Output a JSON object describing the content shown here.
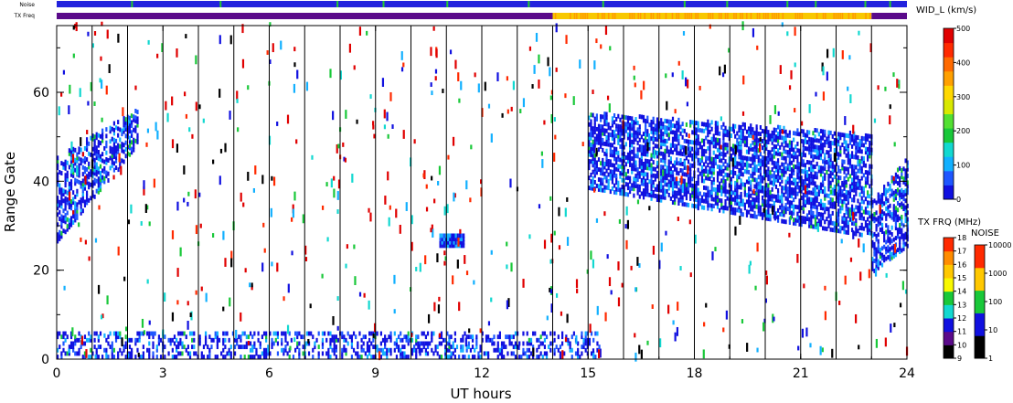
{
  "chart_data": {
    "type": "heatmap",
    "title": "",
    "xlabel": "UT hours",
    "ylabel": "Range Gate",
    "xlim": [
      0,
      24
    ],
    "ylim": [
      0,
      75
    ],
    "xticks": [
      0,
      3,
      6,
      9,
      12,
      15,
      18,
      21,
      24
    ],
    "yticks": [
      0,
      20,
      40,
      60
    ],
    "beam_scan_markers_hours": [
      1,
      2,
      3,
      4,
      5,
      6,
      7,
      8,
      9,
      10,
      11,
      12,
      13,
      14,
      15,
      16,
      17,
      18,
      19,
      20,
      21,
      22,
      23
    ],
    "strips": [
      {
        "label": "Noise",
        "segments": [
          {
            "start": 0,
            "end": 24,
            "color": "#2222dd"
          }
        ],
        "accents": [
          2.1,
          4.6,
          7.9,
          9.2,
          11.0,
          13.3,
          15.4,
          17.7,
          18.9,
          20.6,
          21.4,
          22.8,
          23.5
        ],
        "accent_color": "#22c830"
      },
      {
        "label": "TX Freq",
        "segments": [
          {
            "start": 0,
            "end": 14,
            "color": "#5a0a8a"
          },
          {
            "start": 14,
            "end": 23,
            "color": "#f8c800"
          },
          {
            "start": 23,
            "end": 24,
            "color": "#5a0a8a"
          }
        ]
      }
    ],
    "colorbars": [
      {
        "title": "WID_L (km/s)",
        "ticks": [
          "0",
          "100",
          "200",
          "300",
          "400",
          "500"
        ],
        "colors": [
          "#1010e0",
          "#1e56ff",
          "#12b0ff",
          "#12d8d0",
          "#19c839",
          "#52e032",
          "#d8e800",
          "#ffd800",
          "#ffa000",
          "#ff6a00",
          "#ff2a00",
          "#e00000"
        ]
      },
      {
        "title": "TX FRQ (MHz)",
        "ticks": [
          "9",
          "10",
          "11",
          "12",
          "13",
          "14",
          "15",
          "16",
          "17",
          "18"
        ],
        "colors": [
          "#000000",
          "#5a0a8a",
          "#1010e0",
          "#12d8d0",
          "#19c839",
          "#f8f800",
          "#ffc800",
          "#ff8c00",
          "#ff2a00"
        ]
      },
      {
        "title": "NOISE",
        "ticks": [
          "1",
          "10",
          "100",
          "1000",
          "10000"
        ],
        "colors": [
          "#000000",
          "#1010e0",
          "#19c839",
          "#ffc800",
          "#ff2a00"
        ]
      }
    ],
    "scatter_regions": [
      {
        "name": "morning-band",
        "x0": 0,
        "x1": 2.3,
        "ylow": [
          26,
          48
        ],
        "yhigh": [
          45,
          56
        ],
        "density": 0.55
      },
      {
        "name": "echo-patch-11",
        "x0": 10.8,
        "x1": 11.5,
        "ylow": [
          25,
          25
        ],
        "yhigh": [
          28,
          28
        ],
        "density": 0.95
      },
      {
        "name": "afternoon-band",
        "x0": 15.0,
        "x1": 23.0,
        "ylow": [
          38,
          27
        ],
        "yhigh": [
          55,
          50
        ],
        "density": 0.6
      },
      {
        "name": "late-band",
        "x0": 23.0,
        "x1": 24.0,
        "ylow": [
          19,
          25
        ],
        "yhigh": [
          35,
          45
        ],
        "density": 0.55
      },
      {
        "name": "near-range",
        "x0": 0,
        "x1": 15.3,
        "ylow": [
          0,
          0
        ],
        "yhigh": [
          6,
          6
        ],
        "density": 0.35
      }
    ]
  }
}
